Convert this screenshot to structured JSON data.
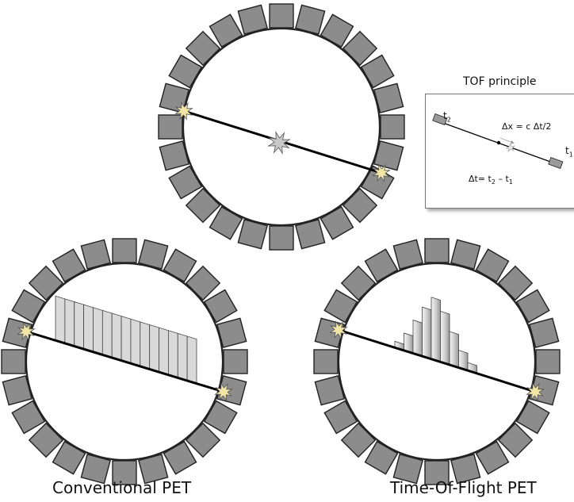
{
  "captions": {
    "conventional": "Conventional PET",
    "tof": "Time-Of-Flight  PET"
  },
  "tof_principle": {
    "title": "TOF principle",
    "t2_label": "t",
    "t2_sub": "2",
    "t1_label": "t",
    "t1_sub": "1",
    "dx_formula": "Δx = c Δt/2",
    "dt_prefix": "Δt= t",
    "dt_sub1": "2",
    "dt_mid": " – t",
    "dt_sub2": "1"
  },
  "colors": {
    "detector_fill": "#8c8c8c",
    "detector_stroke": "#222222",
    "event_star": "#f2e6a6",
    "annihilation_star": "#c8c8c8",
    "histogram_bar": "#d9d9d9"
  },
  "icons": [
    "detector-block-icon",
    "gamma-event-star-icon",
    "annihilation-star-icon"
  ]
}
